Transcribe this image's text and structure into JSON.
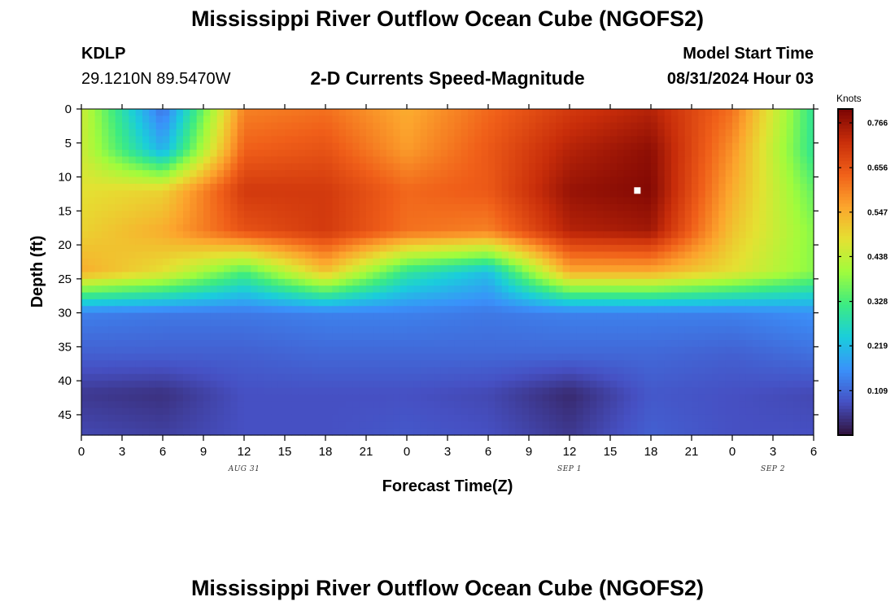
{
  "header": {
    "title": "Mississippi River Outflow Ocean Cube (NGOFS2)",
    "station_id": "KDLP",
    "station_coords": "29.1210N  89.5470W",
    "subtitle": "2-D Currents Speed-Magnitude",
    "model_start_label": "Model Start Time",
    "model_start_value": "08/31/2024 Hour 03"
  },
  "footer": {
    "title": "Mississippi River Outflow Ocean Cube (NGOFS2)"
  },
  "chart_data": {
    "type": "heatmap",
    "title": "2-D Currents Speed-Magnitude",
    "xlabel": "Forecast Time(Z)",
    "ylabel": "Depth (ft)",
    "x_range_hours": [
      0,
      54
    ],
    "y_range_ft": [
      0,
      48
    ],
    "x_tick_labels": [
      "0",
      "3",
      "6",
      "9",
      "12",
      "15",
      "18",
      "21",
      "0",
      "3",
      "6",
      "9",
      "12",
      "15",
      "18",
      "21",
      "0",
      "3",
      "6"
    ],
    "y_tick_labels": [
      "0",
      "5",
      "10",
      "15",
      "20",
      "25",
      "30",
      "35",
      "40",
      "45"
    ],
    "y_tick_values": [
      0,
      5,
      10,
      15,
      20,
      25,
      30,
      35,
      40,
      45
    ],
    "date_labels": [
      {
        "text": "AUG 31",
        "hour": 12
      },
      {
        "text": "SEP 1",
        "hour": 36
      },
      {
        "text": "SEP 2",
        "hour": 51
      }
    ],
    "colorbar": {
      "unit": "Knots",
      "min": 0.0,
      "max": 0.8,
      "tick_values": [
        0.109,
        0.219,
        0.328,
        0.438,
        0.547,
        0.656,
        0.766
      ],
      "tick_labels": [
        "0.109",
        "0.219",
        "0.328",
        "0.438",
        "0.547",
        "0.656",
        "0.766"
      ]
    },
    "marker": {
      "hour": 41,
      "depth_ft": 12
    },
    "grid": false,
    "speed_grid_knots": {
      "hours": [
        0,
        6,
        12,
        18,
        24,
        30,
        36,
        42,
        48,
        54
      ],
      "depths_ft": [
        0,
        6,
        12,
        18,
        24,
        30,
        36,
        42,
        48
      ],
      "values": [
        [
          0.45,
          0.12,
          0.6,
          0.62,
          0.55,
          0.63,
          0.7,
          0.74,
          0.62,
          0.3
        ],
        [
          0.45,
          0.2,
          0.64,
          0.66,
          0.57,
          0.65,
          0.74,
          0.78,
          0.58,
          0.3
        ],
        [
          0.48,
          0.5,
          0.7,
          0.7,
          0.63,
          0.65,
          0.77,
          0.79,
          0.55,
          0.35
        ],
        [
          0.5,
          0.55,
          0.66,
          0.7,
          0.62,
          0.6,
          0.74,
          0.76,
          0.52,
          0.38
        ],
        [
          0.55,
          0.48,
          0.33,
          0.52,
          0.3,
          0.22,
          0.55,
          0.55,
          0.48,
          0.38
        ],
        [
          0.14,
          0.13,
          0.13,
          0.14,
          0.14,
          0.13,
          0.14,
          0.14,
          0.14,
          0.16
        ],
        [
          0.1,
          0.1,
          0.1,
          0.11,
          0.11,
          0.11,
          0.11,
          0.11,
          0.1,
          0.12
        ],
        [
          0.05,
          0.04,
          0.08,
          0.08,
          0.08,
          0.07,
          0.03,
          0.09,
          0.08,
          0.07
        ],
        [
          0.07,
          0.06,
          0.08,
          0.08,
          0.09,
          0.08,
          0.05,
          0.1,
          0.08,
          0.08
        ]
      ]
    }
  }
}
